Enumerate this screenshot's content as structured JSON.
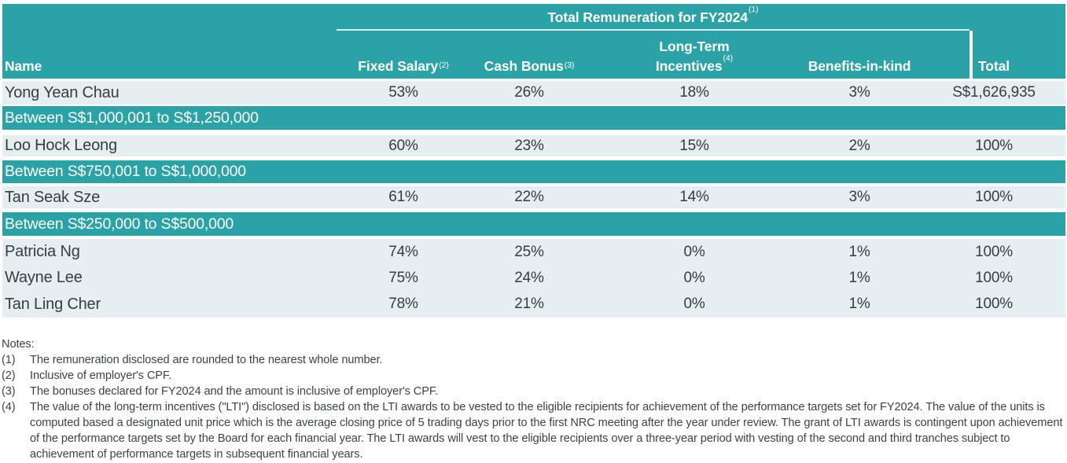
{
  "table": {
    "title": "Total Remuneration for FY2024",
    "title_sup": "(1)",
    "columns": [
      {
        "label": "Name"
      },
      {
        "label": "Fixed Salary",
        "sup": "(2)"
      },
      {
        "label": "Cash Bonus",
        "sup": "(3)"
      },
      {
        "label": "Long-Term Incentives",
        "line1": "Long-Term",
        "line2": "Incentives",
        "sup": "(4)"
      },
      {
        "label": "Benefits-in-kind"
      },
      {
        "label": "Total"
      }
    ],
    "rows": [
      {
        "type": "data",
        "name": "Yong Yean Chau",
        "fixed_salary": "53%",
        "cash_bonus": "26%",
        "lti": "18%",
        "benefits": "3%",
        "total": "S$1,626,935"
      },
      {
        "type": "band",
        "label": "Between S$1,000,001 to S$1,250,000"
      },
      {
        "type": "data",
        "name": "Loo Hock Leong",
        "fixed_salary": "60%",
        "cash_bonus": "23%",
        "lti": "15%",
        "benefits": "2%",
        "total": "100%"
      },
      {
        "type": "band",
        "label": "Between S$750,001 to S$1,000,000"
      },
      {
        "type": "data",
        "name": "Tan Seak Sze",
        "fixed_salary": "61%",
        "cash_bonus": "22%",
        "lti": "14%",
        "benefits": "3%",
        "total": "100%"
      },
      {
        "type": "band",
        "label": "Between S$250,000 to S$500,000"
      },
      {
        "type": "data",
        "name": "Patricia Ng",
        "fixed_salary": "74%",
        "cash_bonus": "25%",
        "lti": "0%",
        "benefits": "1%",
        "total": "100%"
      },
      {
        "type": "data",
        "name": "Wayne Lee",
        "fixed_salary": "75%",
        "cash_bonus": "24%",
        "lti": "0%",
        "benefits": "1%",
        "total": "100%"
      },
      {
        "type": "data",
        "name": "Tan Ling Cher",
        "fixed_salary": "78%",
        "cash_bonus": "21%",
        "lti": "0%",
        "benefits": "1%",
        "total": "100%"
      }
    ]
  },
  "notes": {
    "heading": "Notes:",
    "items": [
      {
        "num": "(1)",
        "text": "The remuneration disclosed are rounded to the nearest whole number."
      },
      {
        "num": "(2)",
        "text": "Inclusive of employer's CPF."
      },
      {
        "num": "(3)",
        "text": "The bonuses declared for FY2024 and the amount is inclusive of employer's CPF."
      },
      {
        "num": "(4)",
        "text": "The value of the long-term incentives (\"LTI\") disclosed is based on the LTI awards to be vested to the eligible recipients for achievement of the performance targets set for FY2024. The value of the units is computed based a designated unit price which is the average closing price of 5 trading days prior to the first NRC meeting after the year under review. The grant of LTI awards is contingent upon achievement of the performance targets set by the Board for each financial year. The LTI awards will vest to the eligible recipients over a three-year period with vesting of the second and third tranches subject to achievement of performance targets in subsequent financial years."
      }
    ]
  },
  "colors": {
    "teal": "#2ba3a6",
    "row_light": "#e5eef1",
    "header_text": "#ffffff",
    "body_text": "#383c3e"
  }
}
